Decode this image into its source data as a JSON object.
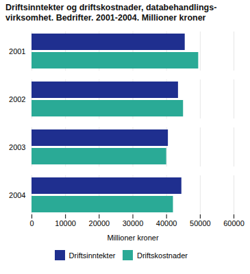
{
  "chart_data": {
    "type": "bar",
    "orientation": "horizontal",
    "title": "Driftsinntekter og driftskostnader, databehandlings-\nvirksomhet. Bedrifter. 2001-2004. Millioner kroner",
    "categories": [
      "2001",
      "2002",
      "2003",
      "2004"
    ],
    "series": [
      {
        "name": "Driftsinntekter",
        "color": "#1f2f8f",
        "values": [
          45500,
          43500,
          40500,
          44500
        ]
      },
      {
        "name": "Driftskostnader",
        "color": "#2aaa96",
        "values": [
          49500,
          45000,
          40000,
          42000
        ]
      }
    ],
    "xlabel": "Millioner kroner",
    "xlim": [
      0,
      60000
    ],
    "xticks": [
      0,
      10000,
      20000,
      30000,
      40000,
      50000,
      60000
    ],
    "grid": true,
    "legend": "bottom"
  }
}
